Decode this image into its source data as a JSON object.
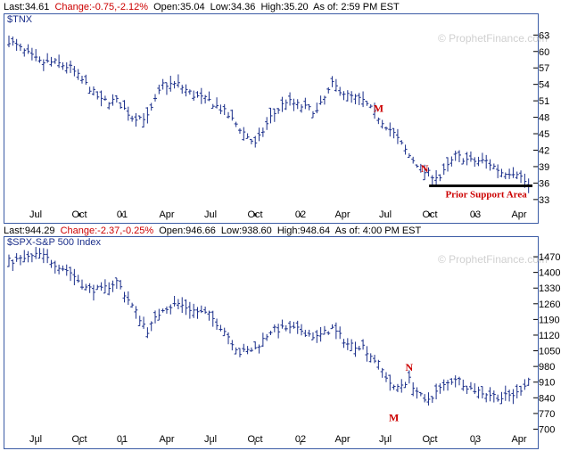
{
  "colors": {
    "bar": "#1a2e8a",
    "frame": "#3b5ba5",
    "annotation": "#cc0000",
    "negative": "#cc0000"
  },
  "top_quote": {
    "last": "Last:34.61",
    "change": "Change:-0.75,-2.12%",
    "open": "Open:35.04",
    "low": "Low:34.36",
    "high": "High:35.20",
    "asof": "As of:  2:59 PM EST"
  },
  "bottom_quote": {
    "last": "Last:944.29",
    "change": "Change:-2.37,-0.25%",
    "open": "Open:946.66",
    "low": "Low:938.60",
    "high": "High:948.64",
    "asof": "As of:  4:00 PM EST"
  },
  "watermark": "© ProphetFinance.com",
  "chart_data": [
    {
      "type": "ohlc",
      "title": "$TNX",
      "ylim": [
        32,
        65
      ],
      "yticks": [
        33,
        36,
        39,
        42,
        45,
        48,
        51,
        54,
        57,
        60,
        63
      ],
      "xticks": [
        "Jul",
        "Oct",
        "01",
        "Apr",
        "Jul",
        "Oct",
        "02",
        "Apr",
        "Jul",
        "Oct",
        "03",
        "Apr"
      ],
      "x_months": [
        "2000-06",
        "2000-07",
        "2000-08",
        "2000-09",
        "2000-10",
        "2000-11",
        "2000-12",
        "2001-01",
        "2001-02",
        "2001-03",
        "2001-04",
        "2001-05",
        "2001-06",
        "2001-07",
        "2001-08",
        "2001-09",
        "2001-10",
        "2001-11",
        "2001-12",
        "2002-01",
        "2002-02",
        "2002-03",
        "2002-04",
        "2002-05",
        "2002-06",
        "2002-07",
        "2002-08",
        "2002-09",
        "2002-10",
        "2002-11",
        "2002-12",
        "2003-01",
        "2003-02",
        "2003-03",
        "2003-04"
      ],
      "close_approx": [
        62,
        60,
        58,
        58,
        57,
        54,
        51,
        51,
        48,
        48,
        54,
        54,
        52,
        51,
        49,
        46,
        43,
        48,
        51,
        50,
        49,
        54,
        52,
        51,
        48,
        45,
        41,
        38,
        37,
        41,
        40,
        40,
        38,
        38,
        34.61
      ],
      "annotations": [
        {
          "label": "M",
          "x": "2002-06",
          "y": 49
        },
        {
          "label": "N",
          "x": "2002-09",
          "y": 38
        }
      ],
      "support": {
        "label": "Prior Support Area",
        "y": 35.5,
        "x_start": "2002-09",
        "x_end": "2003-04"
      }
    },
    {
      "type": "ohlc",
      "title": "$SPX-S&P 500 Index",
      "ylim": [
        690,
        1510
      ],
      "yticks": [
        700,
        770,
        840,
        910,
        980,
        1050,
        1120,
        1190,
        1260,
        1330,
        1400,
        1470
      ],
      "xticks": [
        "Jul",
        "Oct",
        "01",
        "Apr",
        "Jul",
        "Oct",
        "02",
        "Apr",
        "Jul",
        "Oct",
        "03",
        "Apr"
      ],
      "x_months": [
        "2000-06",
        "2000-07",
        "2000-08",
        "2000-09",
        "2000-10",
        "2000-11",
        "2000-12",
        "2001-01",
        "2001-02",
        "2001-03",
        "2001-04",
        "2001-05",
        "2001-06",
        "2001-07",
        "2001-08",
        "2001-09",
        "2001-10",
        "2001-11",
        "2001-12",
        "2002-01",
        "2002-02",
        "2002-03",
        "2002-04",
        "2002-05",
        "2002-06",
        "2002-07",
        "2002-08",
        "2002-09",
        "2002-10",
        "2002-11",
        "2002-12",
        "2003-01",
        "2003-02",
        "2003-03",
        "2003-04"
      ],
      "close_approx": [
        1450,
        1460,
        1480,
        1440,
        1400,
        1330,
        1320,
        1360,
        1250,
        1140,
        1240,
        1260,
        1230,
        1210,
        1140,
        1040,
        1060,
        1140,
        1150,
        1140,
        1110,
        1150,
        1080,
        1070,
        990,
        880,
        920,
        820,
        880,
        930,
        880,
        860,
        840,
        860,
        944.29
      ],
      "annotations": [
        {
          "label": "N",
          "x": "2002-08",
          "y": 960
        },
        {
          "label": "M",
          "x": "2002-07",
          "y": 735
        }
      ]
    }
  ]
}
